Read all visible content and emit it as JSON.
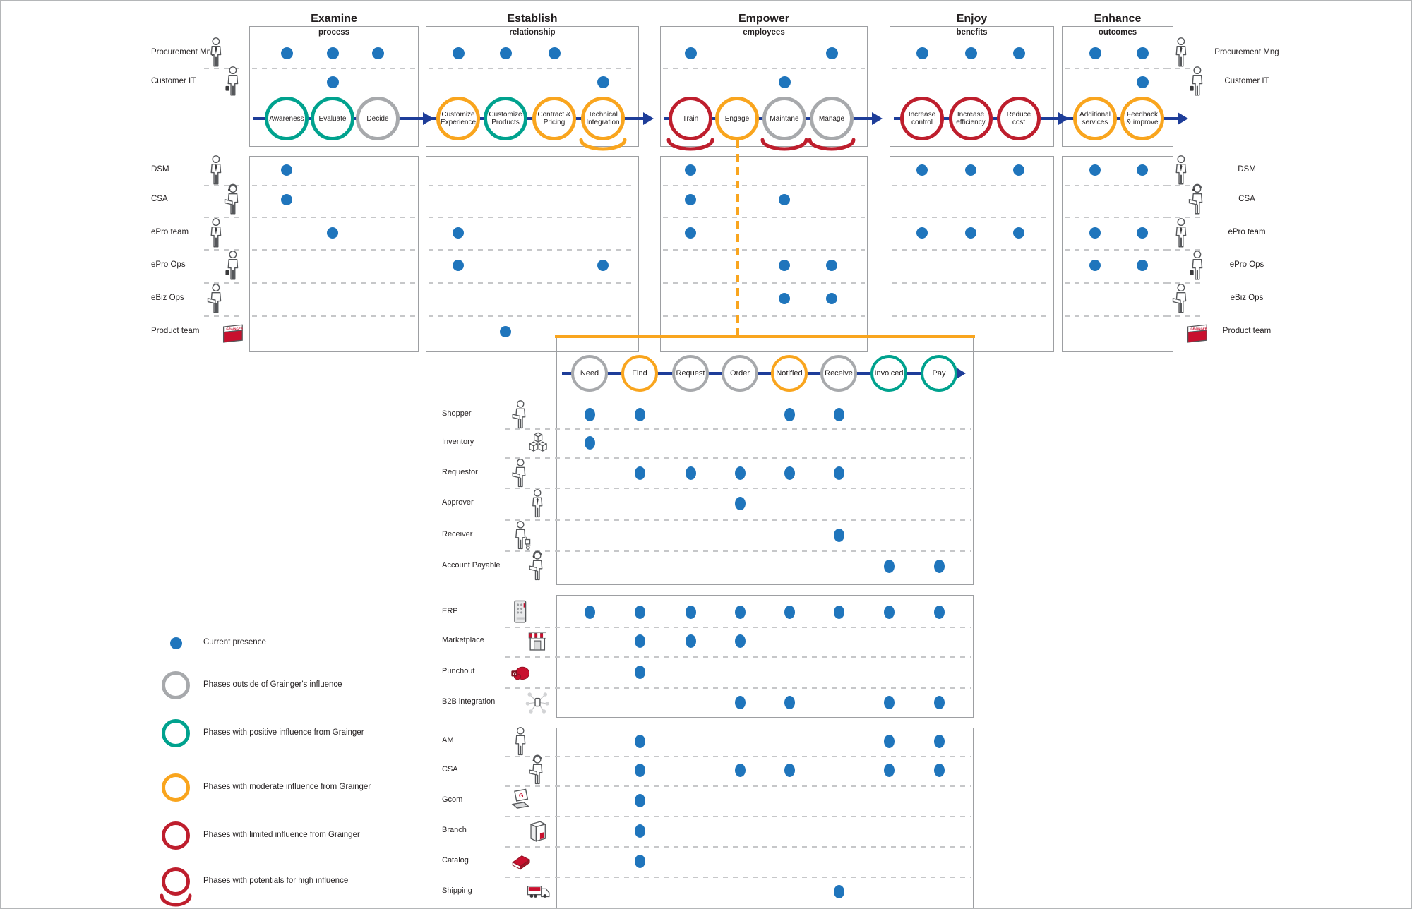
{
  "colors": {
    "dot_blue": "#1F75BC",
    "line_blue": "#1E3D99",
    "teal": "#00A28E",
    "orange": "#F9A51E",
    "red": "#BE1E2D",
    "gray": "#A7A9AC",
    "box_border": "#9D9FA2",
    "dash": "#C6C7C9",
    "text": "#231F20",
    "icon_stroke": "#55575A",
    "grainger_red": "#C8102E"
  },
  "actors_top": [
    {
      "label": "Procurement Mng",
      "icon": "person-tie"
    },
    {
      "label": "Customer IT",
      "icon": "person-tool"
    }
  ],
  "actors_grainger": [
    {
      "label": "DSM",
      "icon": "person-tie"
    },
    {
      "label": "CSA",
      "icon": "person-headset"
    },
    {
      "label": "ePro team",
      "icon": "person-tie"
    },
    {
      "label": "ePro Ops",
      "icon": "person-tool"
    },
    {
      "label": "eBiz Ops",
      "icon": "person-laptop"
    },
    {
      "label": "Product team",
      "icon": "grainger-box"
    }
  ],
  "phases": [
    {
      "title": "Examine",
      "subtitle": "process",
      "steps": [
        {
          "label": "Awareness",
          "color": "teal"
        },
        {
          "label": "Evaluate",
          "color": "teal"
        },
        {
          "label": "Decide",
          "color": "gray"
        }
      ],
      "top_dots": [
        [
          0,
          1,
          2
        ],
        [
          1
        ]
      ],
      "grainger_dots": [
        [
          0
        ],
        [
          0
        ],
        [
          1
        ],
        [],
        [],
        []
      ]
    },
    {
      "title": "Establish",
      "subtitle": "relationship",
      "steps": [
        {
          "label": "Customize Experience",
          "color": "orange"
        },
        {
          "label": "Customize Products",
          "color": "teal"
        },
        {
          "label": "Contract & Pricing",
          "color": "orange"
        },
        {
          "label": "Technical Integration",
          "color": "orange",
          "arc": "orange"
        }
      ],
      "top_dots": [
        [
          0,
          1,
          2
        ],
        [
          3
        ]
      ],
      "grainger_dots": [
        [],
        [],
        [
          0
        ],
        [
          0,
          3
        ],
        [],
        [
          1
        ]
      ]
    },
    {
      "title": "Empower",
      "subtitle": "employees",
      "steps": [
        {
          "label": "Train",
          "color": "red",
          "arc": "red"
        },
        {
          "label": "Engage",
          "color": "orange",
          "drop": true
        },
        {
          "label": "Maintane",
          "color": "gray",
          "arc": "red"
        },
        {
          "label": "Manage",
          "color": "gray",
          "arc": "red"
        }
      ],
      "top_dots": [
        [
          0,
          3
        ],
        [
          2
        ]
      ],
      "grainger_dots": [
        [
          0
        ],
        [
          0,
          2
        ],
        [
          0
        ],
        [
          2,
          3
        ],
        [
          2,
          3
        ],
        []
      ]
    },
    {
      "title": "Enjoy",
      "subtitle": "benefits",
      "steps": [
        {
          "label": "Increase control",
          "color": "red"
        },
        {
          "label": "Increase efficiency",
          "color": "red"
        },
        {
          "label": "Reduce cost",
          "color": "red"
        }
      ],
      "top_dots": [
        [
          0,
          1,
          2
        ],
        []
      ],
      "grainger_dots": [
        [
          0,
          1,
          2
        ],
        [],
        [
          0,
          1,
          2
        ],
        [],
        [],
        []
      ]
    },
    {
      "title": "Enhance",
      "subtitle": "outcomes",
      "steps": [
        {
          "label": "Additional services",
          "color": "orange"
        },
        {
          "label": "Feedback & improve",
          "color": "orange"
        }
      ],
      "top_dots": [
        [
          0,
          1
        ],
        [
          1
        ]
      ],
      "grainger_dots": [
        [
          0,
          1
        ],
        [],
        [
          0,
          1
        ],
        [
          0,
          1
        ],
        [],
        []
      ]
    }
  ],
  "sub_journey": {
    "steps": [
      {
        "label": "Need",
        "color": "gray"
      },
      {
        "label": "Find",
        "color": "orange"
      },
      {
        "label": "Request",
        "color": "gray"
      },
      {
        "label": "Order",
        "color": "gray"
      },
      {
        "label": "Notified",
        "color": "orange"
      },
      {
        "label": "Receive",
        "color": "gray"
      },
      {
        "label": "Invoiced",
        "color": "teal"
      },
      {
        "label": "Pay",
        "color": "teal"
      }
    ],
    "sections": [
      {
        "rows": [
          {
            "label": "Shopper",
            "icon": "person-laptop",
            "dots": [
              0,
              1,
              4,
              5
            ]
          },
          {
            "label": "Inventory",
            "icon": "cubes",
            "dots": [
              0
            ]
          },
          {
            "label": "Requestor",
            "icon": "person-laptop",
            "dots": [
              1,
              2,
              3,
              4,
              5
            ]
          },
          {
            "label": "Approver",
            "icon": "person-tie",
            "dots": [
              3
            ]
          },
          {
            "label": "Receiver",
            "icon": "person-cart",
            "dots": [
              5
            ]
          },
          {
            "label": "Account Payable",
            "icon": "person-headset",
            "dots": [
              6,
              7
            ]
          }
        ]
      },
      {
        "rows": [
          {
            "label": "ERP",
            "icon": "server",
            "dots": [
              0,
              1,
              2,
              3,
              4,
              5,
              6,
              7
            ]
          },
          {
            "label": "Marketplace",
            "icon": "store",
            "dots": [
              1,
              2,
              3
            ]
          },
          {
            "label": "Punchout",
            "icon": "glove",
            "dots": [
              1
            ]
          },
          {
            "label": "B2B integration",
            "icon": "network",
            "dots": [
              3,
              4,
              6,
              7
            ]
          }
        ]
      },
      {
        "rows": [
          {
            "label": "AM",
            "icon": "person",
            "dots": [
              1,
              6,
              7
            ]
          },
          {
            "label": "CSA",
            "icon": "person-headset",
            "dots": [
              1,
              3,
              4,
              6,
              7
            ]
          },
          {
            "label": "Gcom",
            "icon": "laptop-g",
            "dots": [
              1
            ]
          },
          {
            "label": "Branch",
            "icon": "building",
            "dots": [
              1
            ]
          },
          {
            "label": "Catalog",
            "icon": "book",
            "dots": [
              1
            ]
          },
          {
            "label": "Shipping",
            "icon": "truck",
            "dots": [
              5
            ]
          }
        ]
      }
    ]
  },
  "legend": {
    "items": [
      {
        "icon": "dot",
        "color": "dot_blue",
        "label": "Current presence"
      },
      {
        "icon": "ring",
        "color": "gray",
        "label": "Phases outside of Grainger's influence"
      },
      {
        "icon": "ring",
        "color": "teal",
        "label": "Phases with positive influence from Grainger"
      },
      {
        "icon": "ring",
        "color": "orange",
        "label": "Phases with moderate influence from Grainger"
      },
      {
        "icon": "ring",
        "color": "red",
        "label": "Phases with limited influence from Grainger"
      },
      {
        "icon": "ring-arc",
        "color": "red",
        "label": "Phases with potentials for high influence"
      }
    ]
  }
}
